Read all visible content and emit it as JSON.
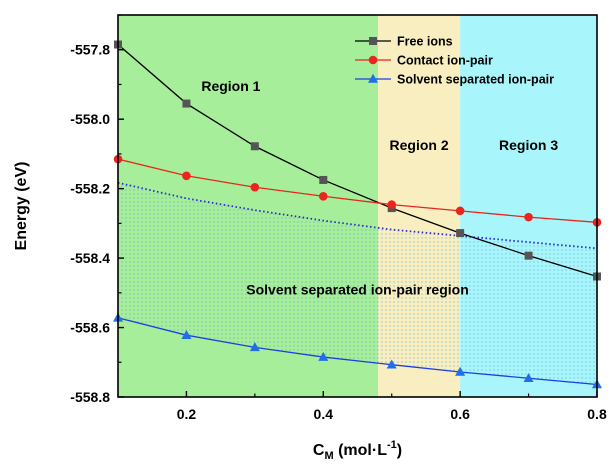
{
  "chart_data": {
    "type": "line",
    "xlabel": "C",
    "xlabel_sub": "M",
    "xlabel_unit_pre": " (mol·L",
    "xlabel_unit_sup": "-1",
    "xlabel_unit_post": ")",
    "ylabel": "Energy (eV)",
    "xlim": [
      0.1,
      0.8
    ],
    "ylim": [
      -558.8,
      -557.7
    ],
    "x_ticks": [
      0.2,
      0.4,
      0.6,
      0.8
    ],
    "x_tick_labels": [
      "0.2",
      "0.4",
      "0.6",
      "0.8"
    ],
    "y_ticks": [
      -558.8,
      -558.6,
      -558.4,
      -558.2,
      -558.0,
      -557.8
    ],
    "y_tick_labels": [
      "-558.8",
      "-558.6",
      "-558.4",
      "-558.2",
      "-558.0",
      "-557.8"
    ],
    "legend_position": "top-right",
    "x": [
      0.1,
      0.2,
      0.3,
      0.4,
      0.5,
      0.6,
      0.7,
      0.8
    ],
    "series": [
      {
        "name": "Free ions",
        "color": "#000000",
        "marker": "square",
        "marker_color": "#555555",
        "values": [
          -557.785,
          -557.955,
          -558.078,
          -558.175,
          -558.256,
          -558.328,
          -558.393,
          -558.453
        ]
      },
      {
        "name": "Contact ion-pair",
        "color": "#e8261e",
        "marker": "circle",
        "marker_color": "#e8261e",
        "values": [
          -558.115,
          -558.163,
          -558.196,
          -558.222,
          -558.246,
          -558.264,
          -558.282,
          -558.297
        ]
      },
      {
        "name": "Solvent separated ion-pair",
        "color": "#1f3fe0",
        "marker": "triangle",
        "marker_color": "#1f6fe8",
        "values": [
          -558.572,
          -558.622,
          -558.657,
          -558.685,
          -558.707,
          -558.728,
          -558.746,
          -558.764
        ]
      }
    ],
    "boundary_curve": {
      "style": "dotted",
      "color": "#2a2ad0",
      "x": [
        0.1,
        0.2,
        0.3,
        0.4,
        0.5,
        0.6,
        0.7,
        0.8
      ],
      "values": [
        -558.183,
        -558.228,
        -558.262,
        -558.292,
        -558.318,
        -558.336,
        -558.354,
        -558.372
      ]
    },
    "regions": [
      {
        "name": "Region 1",
        "x_start": 0.1,
        "x_end": 0.48,
        "color": "#a6ee9a"
      },
      {
        "name": "Region 2",
        "x_start": 0.48,
        "x_end": 0.6,
        "color": "#f8eec0"
      },
      {
        "name": "Region 3",
        "x_start": 0.6,
        "x_end": 0.8,
        "color": "#a8f6fb"
      }
    ],
    "region_label_positions": [
      {
        "name": "Region 1",
        "x": 0.265,
        "y": -557.905
      },
      {
        "name": "Region 2",
        "x": 0.54,
        "y": -558.075
      },
      {
        "name": "Region 3",
        "x": 0.7,
        "y": -558.075
      }
    ],
    "annotations": [
      {
        "text": "Solvent separated ion-pair region",
        "x": 0.45,
        "y": -558.49
      }
    ]
  }
}
